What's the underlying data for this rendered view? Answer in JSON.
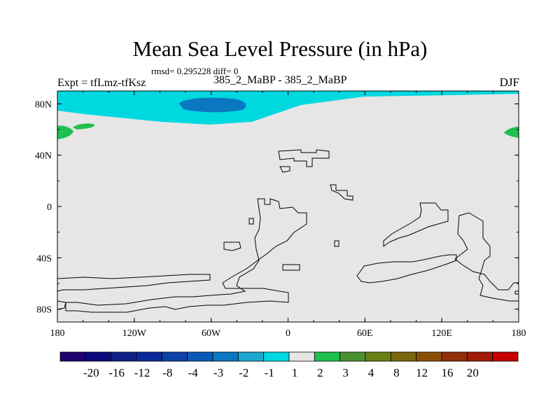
{
  "chart_data": {
    "type": "map-contour",
    "title": "Mean Sea Level Pressure (in hPa)",
    "stats": "rmsd= 0.295228 diff= 0",
    "left_label": "Expt = tfLmz-tfKsz",
    "center_label": "385_2_MaBP - 385_2_MaBP",
    "right_label": "DJF",
    "x_ticks": [
      "180",
      "120W",
      "60W",
      "0",
      "60E",
      "120E",
      "180"
    ],
    "y_ticks": [
      "80N",
      "40N",
      "0",
      "40S",
      "80S"
    ],
    "lon_range": [
      -180,
      180
    ],
    "lat_range": [
      -90,
      90
    ],
    "colorbar": {
      "labels": [
        "-20",
        "-16",
        "-12",
        "-8",
        "-4",
        "-3",
        "-2",
        "-1",
        "1",
        "2",
        "3",
        "4",
        "8",
        "12",
        "16",
        "20"
      ],
      "colors": [
        "#200070",
        "#0a0a80",
        "#10208a",
        "#082a9a",
        "#0d40a8",
        "#0858b8",
        "#0a78c0",
        "#1ea8d0",
        "#00d8e0",
        "#e6e6e6",
        "#1ec050",
        "#4a9030",
        "#6a8018",
        "#7a6810",
        "#8a5008",
        "#903008",
        "#a01c08",
        "#c80000"
      ]
    },
    "fields": [
      {
        "label": "-2 to -1",
        "region": "Arctic band",
        "color": "#00d8e0"
      },
      {
        "label": "-3 to -2",
        "region": "north of Greenland",
        "color": "#0a78c0"
      },
      {
        "label": "1 to 2",
        "region": "near date line, ~60N",
        "color": "#1ec050"
      }
    ]
  }
}
